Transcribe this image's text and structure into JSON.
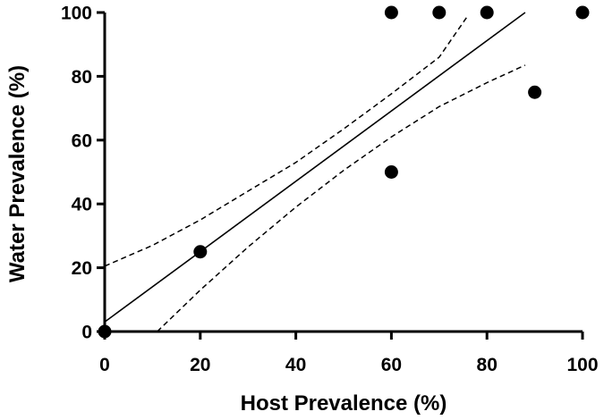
{
  "chart_data": {
    "type": "scatter",
    "title": "",
    "xlabel": "Host Prevalence (%)",
    "ylabel": "Water Prevalence (%)",
    "xlim": [
      0,
      100
    ],
    "ylim": [
      0,
      100
    ],
    "x_ticks": [
      "0",
      "20",
      "40",
      "60",
      "80",
      "100"
    ],
    "y_ticks": [
      "0",
      "20",
      "40",
      "60",
      "80",
      "100"
    ],
    "grid": false,
    "legend": "none",
    "point_color": "#000000",
    "points": [
      {
        "x": 0,
        "y": 0
      },
      {
        "x": 20,
        "y": 25
      },
      {
        "x": 60,
        "y": 50
      },
      {
        "x": 60,
        "y": 100
      },
      {
        "x": 70,
        "y": 100
      },
      {
        "x": 80,
        "y": 100
      },
      {
        "x": 90,
        "y": 75
      },
      {
        "x": 100,
        "y": 100
      }
    ],
    "regression_line": [
      {
        "x": 0,
        "y": 3
      },
      {
        "x": 88,
        "y": 100
      }
    ],
    "confidence_band_upper": [
      {
        "x": 0,
        "y": 20.5
      },
      {
        "x": 10,
        "y": 27
      },
      {
        "x": 20,
        "y": 35
      },
      {
        "x": 30,
        "y": 44
      },
      {
        "x": 40,
        "y": 53
      },
      {
        "x": 50,
        "y": 63.5
      },
      {
        "x": 60,
        "y": 74.5
      },
      {
        "x": 70,
        "y": 86
      },
      {
        "x": 76,
        "y": 99
      }
    ],
    "confidence_band_lower": [
      {
        "x": 11,
        "y": 0
      },
      {
        "x": 20,
        "y": 13
      },
      {
        "x": 30,
        "y": 26.5
      },
      {
        "x": 40,
        "y": 39
      },
      {
        "x": 50,
        "y": 50.5
      },
      {
        "x": 60,
        "y": 61
      },
      {
        "x": 70,
        "y": 70.5
      },
      {
        "x": 80,
        "y": 78
      },
      {
        "x": 88,
        "y": 83.5
      }
    ]
  }
}
